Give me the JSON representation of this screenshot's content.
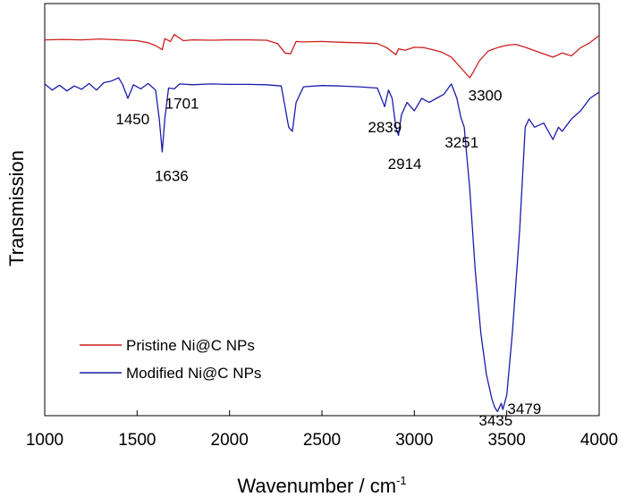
{
  "chart_data": {
    "type": "line",
    "xlabel": "Wavenumber / cm",
    "xlabel_sup": "-1",
    "ylabel": "Transmission",
    "xlim": [
      1000,
      4000
    ],
    "ylim": [
      0,
      100
    ],
    "x_ticks": [
      "1000",
      "1500",
      "2000",
      "2500",
      "3000",
      "3500",
      "4000"
    ],
    "legend_position": "lower-left",
    "grid": false,
    "series": [
      {
        "name": "Pristine Ni@C NPs",
        "color": "#cc1f1f",
        "x": [
          1000,
          1100,
          1200,
          1300,
          1400,
          1500,
          1560,
          1600,
          1636,
          1650,
          1680,
          1701,
          1750,
          1800,
          1900,
          2000,
          2100,
          2200,
          2260,
          2300,
          2330,
          2360,
          2400,
          2500,
          2600,
          2700,
          2800,
          2850,
          2900,
          2914,
          2950,
          3000,
          3050,
          3100,
          3150,
          3200,
          3250,
          3280,
          3300,
          3320,
          3350,
          3400,
          3450,
          3500,
          3550,
          3600,
          3650,
          3700,
          3750,
          3800,
          3850,
          3900,
          3950,
          4000
        ],
        "y": [
          91.2,
          91.3,
          91.2,
          91.4,
          91.2,
          91.0,
          90.5,
          89.8,
          88.8,
          91.5,
          90.8,
          92.5,
          91.0,
          91.2,
          91.1,
          91.2,
          91.2,
          91.1,
          90.3,
          88.0,
          87.8,
          90.8,
          90.7,
          90.8,
          90.6,
          90.5,
          90.3,
          89.3,
          87.6,
          89.0,
          88.7,
          89.4,
          89.3,
          88.8,
          88.2,
          87.0,
          84.5,
          83.0,
          82.0,
          83.5,
          86.0,
          88.5,
          89.3,
          89.9,
          90.1,
          89.4,
          88.6,
          87.8,
          87.0,
          88.0,
          87.3,
          89.3,
          90.5,
          92.3
        ]
      },
      {
        "name": "Modified Ni@C NPs",
        "color": "#1c1caa",
        "x": [
          1000,
          1040,
          1080,
          1120,
          1160,
          1200,
          1240,
          1280,
          1320,
          1360,
          1400,
          1420,
          1450,
          1480,
          1520,
          1560,
          1600,
          1620,
          1636,
          1650,
          1670,
          1701,
          1730,
          1800,
          1900,
          2000,
          2100,
          2200,
          2280,
          2300,
          2320,
          2340,
          2360,
          2400,
          2500,
          2600,
          2700,
          2800,
          2839,
          2860,
          2880,
          2900,
          2914,
          2930,
          2960,
          3000,
          3040,
          3080,
          3120,
          3160,
          3200,
          3230,
          3251,
          3270,
          3300,
          3330,
          3360,
          3390,
          3420,
          3435,
          3450,
          3470,
          3479,
          3500,
          3530,
          3570,
          3600,
          3620,
          3650,
          3700,
          3750,
          3780,
          3800,
          3850,
          3900,
          3950,
          4000
        ],
        "y": [
          80.5,
          79.0,
          80.2,
          78.8,
          80.0,
          79.2,
          80.6,
          79.0,
          80.8,
          81.2,
          82.0,
          80.5,
          77.0,
          80.3,
          79.3,
          80.6,
          79.0,
          72.0,
          64.0,
          72.0,
          79.5,
          79.3,
          80.5,
          80.3,
          80.5,
          80.4,
          80.4,
          80.3,
          80.0,
          75.0,
          70.0,
          69.0,
          76.0,
          79.8,
          80.1,
          80.0,
          79.8,
          79.5,
          75.0,
          79.0,
          77.0,
          70.0,
          68.0,
          73.0,
          76.0,
          74.0,
          77.0,
          76.0,
          77.0,
          78.0,
          80.5,
          77.0,
          72.5,
          70.0,
          55.0,
          35.0,
          20.0,
          10.0,
          4.0,
          2.0,
          1.0,
          3.0,
          1.5,
          5.0,
          20.0,
          45.0,
          70.0,
          72.0,
          70.0,
          71.0,
          67.0,
          70.0,
          69.0,
          72.0,
          74.0,
          77.0,
          78.5
        ]
      }
    ],
    "annotations": [
      {
        "text": "1450",
        "x": 1450,
        "y": 77.0,
        "dx": -0.8,
        "dy": 1.7
      },
      {
        "text": "1701",
        "x": 1701,
        "y": 79.3,
        "dx": -0.6,
        "dy": 1.3
      },
      {
        "text": "1636",
        "x": 1636,
        "y": 64.0,
        "dx": -0.5,
        "dy": 1.9
      },
      {
        "text": "2839",
        "x": 2839,
        "y": 75.0,
        "dx": -1.1,
        "dy": 1.7
      },
      {
        "text": "2914",
        "x": 2914,
        "y": 68.0,
        "dx": -0.7,
        "dy": 2.2
      },
      {
        "text": "3251",
        "x": 3251,
        "y": 72.5,
        "dx": -1.05,
        "dy": 2.0
      },
      {
        "text": "3300",
        "x": 3300,
        "y": 82.0,
        "dx": -0.1,
        "dy": 1.5
      },
      {
        "text": "3435",
        "x": 3435,
        "y": 2.0,
        "dx": -1.05,
        "dy": 1.2
      },
      {
        "text": "3479",
        "x": 3479,
        "y": 1.5,
        "dx": 0.3,
        "dy": 0.3
      }
    ]
  }
}
